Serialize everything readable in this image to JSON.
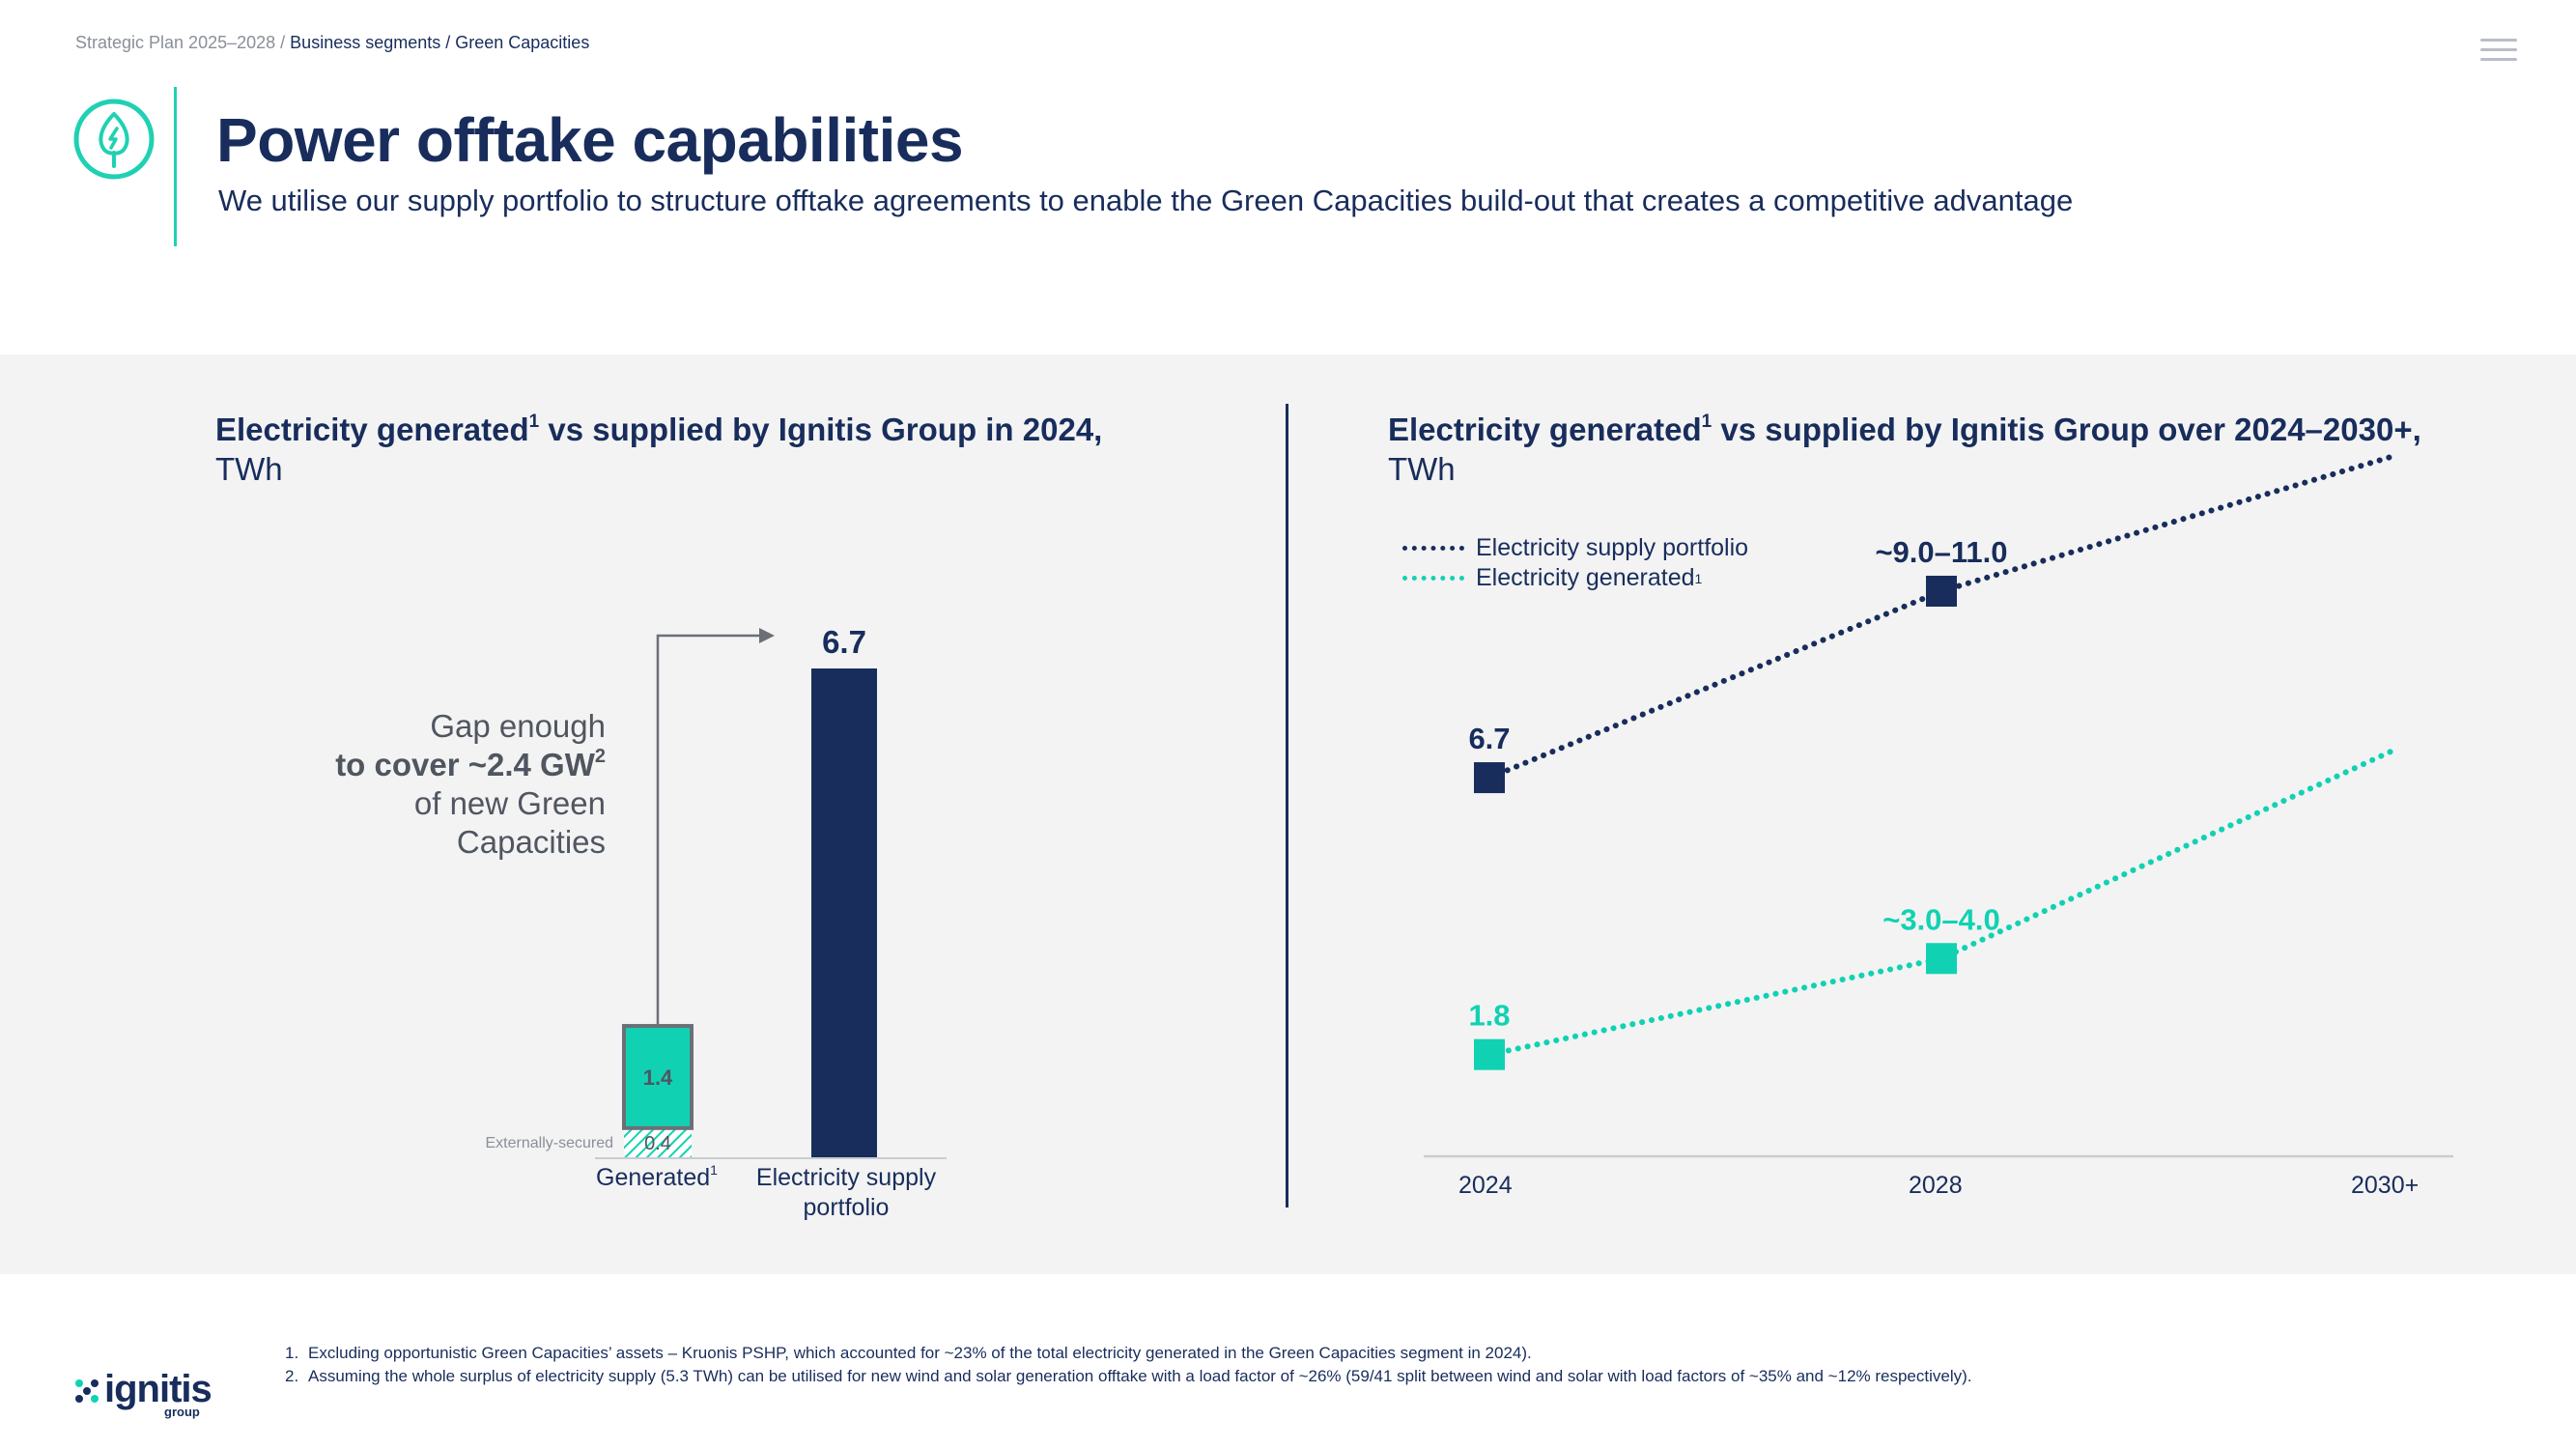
{
  "breadcrumb": {
    "root": "Strategic Plan 2025–2028 / ",
    "current": "Business segments / Green Capacities"
  },
  "header": {
    "title": "Power offtake capabilities",
    "subtitle": "We utilise our supply portfolio to structure offtake agreements to enable the Green Capacities build-out that creates a competitive advantage",
    "icon": "leaf-icon",
    "accent_color": "#1fd1b2"
  },
  "colors": {
    "navy": "#182d5c",
    "teal": "#10d2b3",
    "grey_text": "#505660"
  },
  "left_chart": {
    "title_part1": "Electricity generated",
    "title_sup": "1",
    "title_part2": " vs supplied by Ignitis Group in 2024,",
    "unit": "TWh",
    "gap_line1": "Gap enough",
    "gap_line2": "to cover ~2.4 GW",
    "gap_sup": "2",
    "gap_line3": "of new Green",
    "gap_line4": "Capacities",
    "externally_secured_label": "Externally-secured",
    "category_generated": "Generated",
    "category_generated_sup": "1",
    "category_supply_line1": "Electricity supply",
    "category_supply_line2": "portfolio"
  },
  "right_chart": {
    "title_part1": "Electricity generated",
    "title_sup": "1",
    "title_part2": " vs supplied by Ignitis Group over 2024–2030+,",
    "unit": "TWh",
    "legend_supply": "Electricity supply portfolio",
    "legend_generated": "Electricity generated",
    "legend_generated_sup": "1",
    "x_labels": [
      "2024",
      "2028",
      "2030+"
    ]
  },
  "chart_data": [
    {
      "type": "bar",
      "title": "Electricity generated vs supplied by Ignitis Group in 2024, TWh",
      "categories": [
        "Generated",
        "Electricity supply portfolio"
      ],
      "series": [
        {
          "name": "Externally-secured",
          "values": [
            0.4,
            0
          ],
          "labels": [
            "0.4",
            ""
          ],
          "pattern": "hatched"
        },
        {
          "name": "",
          "values": [
            1.4,
            6.7
          ],
          "labels": [
            "1.4",
            "6.7"
          ]
        }
      ],
      "ylim": [
        0,
        6.7
      ]
    },
    {
      "type": "line",
      "title": "Electricity generated vs supplied by Ignitis Group over 2024–2030+, TWh",
      "x": [
        "2024",
        "2028",
        "2030+"
      ],
      "series": [
        {
          "name": "Electricity supply portfolio",
          "values": [
            6.7,
            10.0,
            12.4
          ],
          "labels": [
            "6.7",
            "~9.0–11.0",
            ""
          ],
          "color": "#182d5c",
          "style": "dotted"
        },
        {
          "name": "Electricity generated",
          "values": [
            1.8,
            3.5,
            7.2
          ],
          "labels": [
            "1.8",
            "~3.0–4.0",
            ""
          ],
          "color": "#10d2b3",
          "style": "dotted"
        }
      ],
      "ylim": [
        0,
        14
      ],
      "grid": false,
      "legend_position": "top-left"
    }
  ],
  "footnotes": [
    {
      "num": "1.",
      "text": "Excluding opportunistic Green Capacities’ assets – Kruonis PSHP, which accounted for ~23% of the total electricity generated in the Green Capacities segment in 2024)."
    },
    {
      "num": "2.",
      "text": "Assuming the whole surplus of electricity supply (5.3 TWh) can be utilised for new wind and solar generation offtake with a load factor of ~26% (59/41 split between wind and solar with load factors of ~35% and ~12% respectively)."
    }
  ],
  "logo": {
    "word": "ignitis",
    "sub": "group"
  }
}
